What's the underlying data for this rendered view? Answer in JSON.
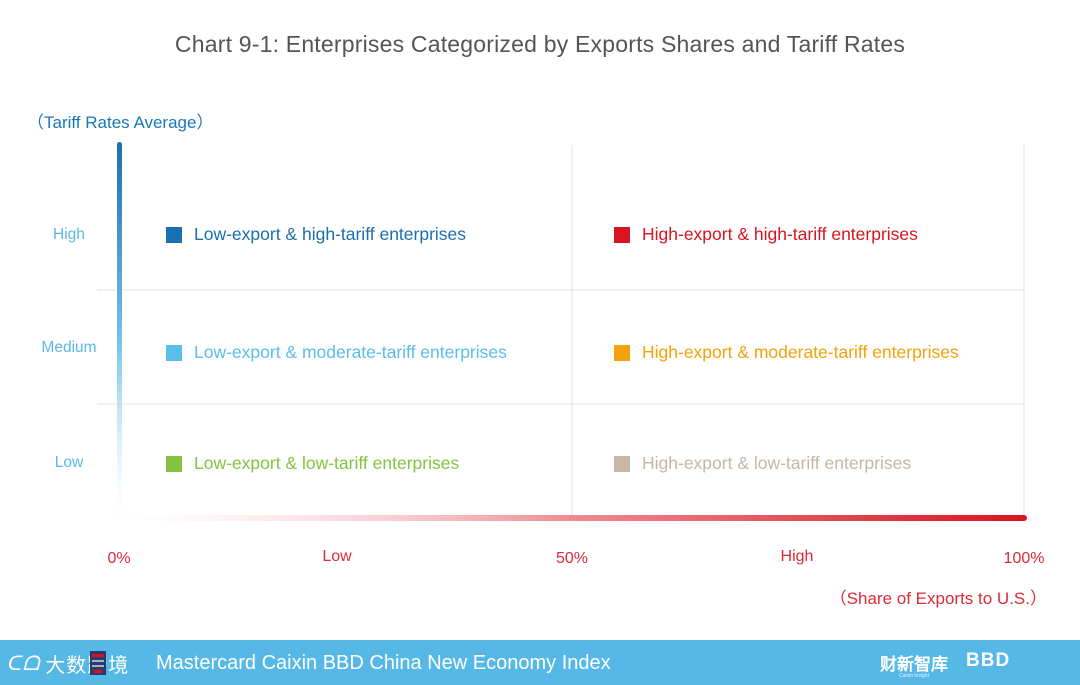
{
  "title": "Chart 9-1: Enterprises Categorized by Exports Shares and Tariff Rates",
  "y_axis": {
    "title": "（Tariff Rates Average）",
    "ticks": [
      "High",
      "Medium",
      "Low"
    ]
  },
  "x_axis": {
    "title": "（Share of Exports to U.S.）",
    "ticks": [
      "0%",
      "Low",
      "50%",
      "High",
      "100%"
    ]
  },
  "quadrants": [
    {
      "label": "Low-export & high-tariff enterprises",
      "color": "#1a6fae"
    },
    {
      "label": "High-export & high-tariff enterprises",
      "color": "#d7141f"
    },
    {
      "label": "Low-export & moderate-tariff enterprises",
      "color": "#5bbde9"
    },
    {
      "label": "High-export & moderate-tariff enterprises",
      "color": "#f2a20c"
    },
    {
      "label": "Low-export & low-tariff enterprises",
      "color": "#84c440"
    },
    {
      "label": "High-export & low-tariff enterprises",
      "color": "#c7b6a4"
    }
  ],
  "colors": {
    "y_axis": "#1a78b8",
    "x_axis": "#dc2a37",
    "footer": "#55b8e7",
    "grid": "#e3e3e3"
  },
  "footer": {
    "text": "Mastercard Caixin BBD China New Economy Index",
    "logo_left_mark": "ᑕᗝ",
    "logo_left_cn": "大数跨境",
    "logo_caixin": "财新智库",
    "logo_caixin_sub": "Caixin Insight",
    "logo_bbd": "BBD"
  }
}
